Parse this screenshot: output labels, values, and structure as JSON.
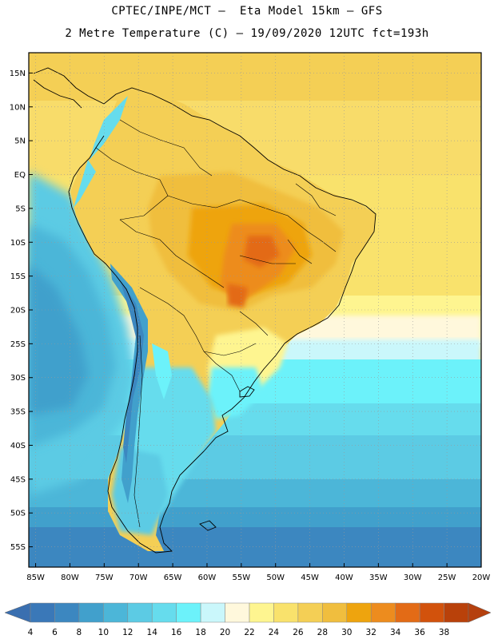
{
  "header": {
    "title_line1": "CPTEC/INPE/MCT –  Eta Model 15km – GFS",
    "title_line2": "2 Metre Temperature (C) – 19/09/2020 12UTC fct=193h"
  },
  "map": {
    "lon_range": [
      -86,
      -20
    ],
    "lat_range": [
      18,
      -58
    ],
    "lat_labels": [
      "15N",
      "10N",
      "5N",
      "EQ",
      "5S",
      "10S",
      "15S",
      "20S",
      "25S",
      "30S",
      "35S",
      "40S",
      "45S",
      "50S",
      "55S"
    ],
    "lat_values": [
      15,
      10,
      5,
      0,
      -5,
      -10,
      -15,
      -20,
      -25,
      -30,
      -35,
      -40,
      -45,
      -50,
      -55
    ],
    "lon_labels": [
      "85W",
      "80W",
      "75W",
      "70W",
      "65W",
      "60W",
      "55W",
      "50W",
      "45W",
      "40W",
      "35W",
      "30W",
      "25W",
      "20W"
    ],
    "lon_values": [
      -85,
      -80,
      -75,
      -70,
      -65,
      -60,
      -55,
      -50,
      -45,
      -40,
      -35,
      -30,
      -25,
      -20
    ]
  },
  "colorbar": {
    "labels": [
      "4",
      "6",
      "8",
      "10",
      "12",
      "14",
      "16",
      "18",
      "20",
      "22",
      "24",
      "26",
      "28",
      "30",
      "32",
      "34",
      "36",
      "38"
    ],
    "colors": [
      "#3a78b8",
      "#3c87c0",
      "#41a0cc",
      "#4cb6d8",
      "#5ccbe4",
      "#66dced",
      "#6cf2fa",
      "#caf7fb",
      "#fff8dc",
      "#fef590",
      "#f9e26c",
      "#f4cf55",
      "#f0be3e",
      "#eea40e",
      "#ed8c1e",
      "#e36b16",
      "#d2520c",
      "#b9410a"
    ],
    "left_arrow_color": "#3a6fb0",
    "right_arrow_color": "#b5400e"
  }
}
